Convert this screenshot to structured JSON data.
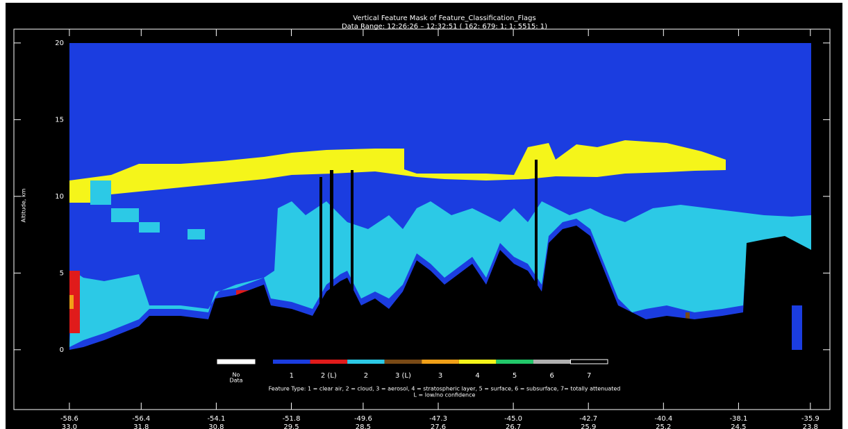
{
  "chart_data": {
    "type": "feature-mask",
    "title": "Vertical Feature Mask of Feature_Classification_Flags",
    "subtitle": "Data Range: 12:26:26 – 12:32:51 ( 162: 679: 1; 1: 5515: 1)",
    "ylabel": "Altitude, km",
    "ylim": [
      -3.9,
      20.9
    ],
    "yticks": [
      0,
      5,
      10,
      15,
      20
    ],
    "xlim": [
      -60.3,
      -35.3
    ],
    "xticks": [
      -58.6,
      -56.4,
      -54.1,
      -51.8,
      -49.6,
      -47.3,
      {
        "value": -45,
        "label": "-45.0"
      },
      -42.7,
      -40.4,
      -38.1,
      -35.9
    ],
    "xtick_longitudes": [
      "33.0",
      "31.8",
      "30.8",
      "29.5",
      "28.5",
      "27.6",
      "26.7",
      "25.9",
      "25.2",
      "24.5",
      "23.8"
    ],
    "legend": {
      "no_data": [
        "No",
        "Data"
      ],
      "items": [
        {
          "label": "1",
          "color": "#1b3de0"
        },
        {
          "label": "2 (L)",
          "color": "#e01b1b"
        },
        {
          "label": "2",
          "color": "#2cc9e6"
        },
        {
          "label": "3 (L)",
          "color": "#7a4a16"
        },
        {
          "label": "3",
          "color": "#f0a018"
        },
        {
          "label": "4",
          "color": "#f5f51a"
        },
        {
          "label": "5",
          "color": "#22c86a"
        },
        {
          "label": "6",
          "color": "#b0b0b0"
        },
        {
          "label": "7",
          "color": "#000000"
        }
      ],
      "note": "Feature Type: 1 = clear air,  2 = cloud,  3 = aerosol,  4 = stratospheric layer,  5 = surface,  6 = subsurface,  7= totally attenuated",
      "note2": "L = low/no confidence"
    }
  }
}
